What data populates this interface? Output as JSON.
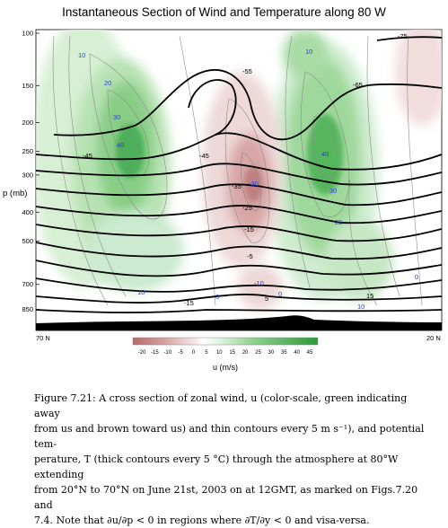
{
  "chart_data": {
    "type": "heatmap",
    "title": "Instantaneous Section of Wind and Temperature along 80 W",
    "ylabel": "p (mb)",
    "y_ticks": [
      "100",
      "150",
      "200",
      "250",
      "300",
      "400",
      "500",
      "700",
      "850"
    ],
    "x_left_label": "70 N",
    "x_right_label": "20 N",
    "colorbar_label": "u (m/s)",
    "colorbar_ticks": [
      "-20",
      "-15",
      "-10",
      "-5",
      "0",
      "5",
      "10",
      "15",
      "20",
      "25",
      "30",
      "35",
      "40",
      "45"
    ],
    "wind_labels": [
      "10",
      "20",
      "30",
      "40",
      "-30",
      "-10",
      "0",
      "10",
      "20",
      "30",
      "40",
      "0",
      "10",
      "0",
      "10"
    ],
    "temperature_labels": [
      "-75",
      "-65",
      "-55",
      "-45",
      "-45",
      "-35",
      "-25",
      "-15",
      "-5",
      "5",
      "15",
      "-15"
    ],
    "colors": {
      "green": "#3aa845",
      "brown": "#b86b6b",
      "terrain": "#000000"
    }
  },
  "caption": {
    "lines": [
      "Figure 7.21: A cross section of zonal wind, u (color-scale, green indicating away",
      "from us and brown toward us) and thin contours every 5 m s⁻¹), and potential tem-",
      "perature, T (thick contours every 5 °C) through the atmosphere at 80°W extending",
      "from 20°N to 70°N on June 21st, 2003 on at 12GMT, as marked on Figs.7.20 and",
      "7.4. Note that ∂u/∂p < 0 in regions where ∂T/∂y < 0 and visa-versa."
    ]
  }
}
